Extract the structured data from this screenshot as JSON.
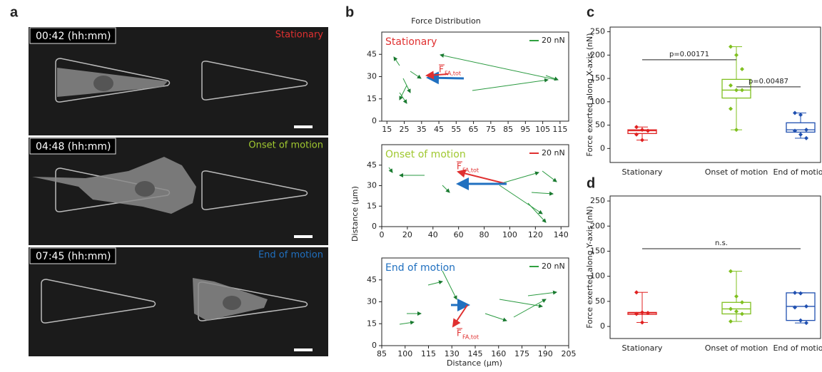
{
  "panel_labels": [
    "a",
    "b",
    "c",
    "d"
  ],
  "panel_a": {
    "frames": [
      {
        "time": "00:42 (hh:mm)",
        "state": "Stationary"
      },
      {
        "time": "04:48 (hh:mm)",
        "state": "Onset of motion"
      },
      {
        "time": "07:45 (hh:mm)",
        "state": "End of motion"
      }
    ]
  },
  "panel_b": {
    "title": "Force Distribution",
    "x_label": "Distance (µm)",
    "y_label": "Distance (µm)"
  },
  "chart_data": [
    {
      "type": "quiver",
      "title": "Stationary",
      "title_color": "#e03030",
      "legend_label": "20 nN",
      "legend_color": "#30a040",
      "annotation_symbol": "F",
      "annotation_subscript": "FA,tot",
      "xlim": [
        12,
        120
      ],
      "xticks": [
        15,
        25,
        35,
        45,
        55,
        65,
        75,
        85,
        95,
        105,
        115
      ],
      "ylim": [
        0,
        60
      ],
      "yticks": [
        0,
        15,
        30,
        45
      ]
    },
    {
      "type": "quiver",
      "title": "Onset of motion",
      "title_color": "#a0c830",
      "legend_label": "20 nN",
      "legend_color": "#e03030",
      "annotation_symbol": "F",
      "annotation_subscript": "FA,tot",
      "xlim": [
        0,
        146
      ],
      "xticks": [
        0,
        20,
        40,
        60,
        80,
        100,
        120,
        140
      ],
      "ylim": [
        0,
        60
      ],
      "yticks": [
        0,
        15,
        30,
        45
      ]
    },
    {
      "type": "quiver",
      "title": "End of motion",
      "title_color": "#2070c0",
      "legend_label": "20 nN",
      "legend_color": "#30a040",
      "annotation_symbol": "F",
      "annotation_subscript": "FA,tot",
      "xlim": [
        85,
        205
      ],
      "xticks": [
        85,
        100,
        115,
        130,
        145,
        160,
        175,
        190,
        205
      ],
      "ylim": [
        0,
        60
      ],
      "yticks": [
        0,
        15,
        30,
        45
      ]
    },
    {
      "type": "box",
      "y_label": "Force exerted along X-axis (nN)",
      "categories": [
        "Stationary",
        "Onset of motion",
        "End of motion"
      ],
      "ylim": [
        -30,
        260
      ],
      "yticks": [
        0,
        50,
        100,
        150,
        200,
        250
      ],
      "boxes": [
        {
          "color": "#e02020",
          "min": 18,
          "q1": 32,
          "median": 38,
          "q3": 40,
          "max": 46,
          "points": [
            46,
            40,
            38,
            30,
            18
          ]
        },
        {
          "color": "#80c020",
          "min": 40,
          "q1": 108,
          "median": 125,
          "q3": 148,
          "max": 218,
          "points": [
            218,
            200,
            170,
            135,
            125,
            125,
            85,
            40
          ]
        },
        {
          "color": "#2050b0",
          "min": 22,
          "q1": 35,
          "median": 40,
          "q3": 55,
          "max": 76,
          "points": [
            76,
            72,
            40,
            38,
            30,
            22
          ]
        }
      ],
      "annotations": [
        "p=0.00171",
        "p=0.00487"
      ]
    },
    {
      "type": "box",
      "y_label": "Force exerted along Y-axis (nN)",
      "categories": [
        "Stationary",
        "Onset of motion",
        "End of motion"
      ],
      "ylim": [
        -24,
        260
      ],
      "yticks": [
        0,
        50,
        100,
        150,
        200,
        250
      ],
      "boxes": [
        {
          "color": "#e02020",
          "min": 8,
          "q1": 24,
          "median": 27,
          "q3": 28,
          "max": 68,
          "points": [
            68,
            28,
            27,
            25,
            8
          ]
        },
        {
          "color": "#80c020",
          "min": 10,
          "q1": 25,
          "median": 35,
          "q3": 48,
          "max": 110,
          "points": [
            110,
            60,
            48,
            35,
            30,
            25,
            10
          ]
        },
        {
          "color": "#2050b0",
          "min": 7,
          "q1": 12,
          "median": 40,
          "q3": 67,
          "max": 67,
          "points": [
            67,
            66,
            40,
            38,
            12,
            7
          ]
        }
      ],
      "annotations": [
        "n.s."
      ]
    }
  ]
}
